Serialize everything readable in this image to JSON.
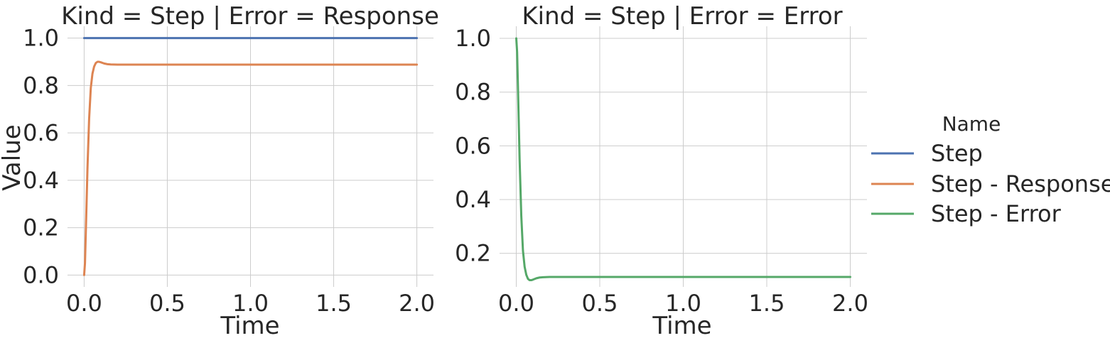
{
  "chart_data": {
    "type": "line",
    "xlabel": "Time",
    "ylabel": "Value",
    "legend": {
      "title": "Name",
      "placement": "right",
      "entries": [
        "Step",
        "Step - Response",
        "Step - Error"
      ]
    },
    "colors": {
      "Step": "#4c72b0",
      "Step - Response": "#dd8452",
      "Step - Error": "#55a868"
    },
    "panels": [
      {
        "title": "Kind = Step | Error = Response",
        "xlim": [
          -0.1,
          2.1
        ],
        "ylim": [
          -0.05,
          1.05
        ],
        "xticks": [
          "0.0",
          "0.5",
          "1.0",
          "1.5",
          "2.0"
        ],
        "xtick_values": [
          0,
          0.5,
          1.0,
          1.5,
          2.0
        ],
        "yticks": [
          "0.0",
          "0.2",
          "0.4",
          "0.6",
          "0.8",
          "1.0"
        ],
        "ytick_values": [
          0,
          0.2,
          0.4,
          0.6,
          0.8,
          1.0
        ],
        "grid": true,
        "series": [
          {
            "name": "Step",
            "x": [
              0,
              2.0
            ],
            "y": [
              1.0,
              1.0
            ]
          },
          {
            "name": "Step - Response",
            "x": [
              0,
              0.005,
              0.01,
              0.02,
              0.03,
              0.04,
              0.05,
              0.06,
              0.07,
              0.08,
              0.09,
              0.1,
              0.12,
              0.14,
              0.16,
              0.2,
              0.3,
              0.5,
              1.0,
              1.5,
              2.0
            ],
            "y": [
              0,
              0.05,
              0.18,
              0.45,
              0.66,
              0.79,
              0.85,
              0.88,
              0.895,
              0.9,
              0.9,
              0.898,
              0.893,
              0.89,
              0.889,
              0.888,
              0.888,
              0.888,
              0.888,
              0.888,
              0.888
            ]
          }
        ]
      },
      {
        "title": "Kind = Step | Error = Error",
        "xlim": [
          -0.1,
          2.1
        ],
        "ylim": [
          0.075,
          1.045
        ],
        "xticks": [
          "0.0",
          "0.5",
          "1.0",
          "1.5",
          "2.0"
        ],
        "xtick_values": [
          0,
          0.5,
          1.0,
          1.5,
          2.0
        ],
        "yticks": [
          "0.2",
          "0.4",
          "0.6",
          "0.8",
          "1.0"
        ],
        "ytick_values": [
          0.2,
          0.4,
          0.6,
          0.8,
          1.0
        ],
        "grid": true,
        "series": [
          {
            "name": "Step - Error",
            "x": [
              0,
              0.005,
              0.01,
              0.02,
              0.03,
              0.04,
              0.05,
              0.06,
              0.07,
              0.08,
              0.09,
              0.1,
              0.12,
              0.14,
              0.16,
              0.2,
              0.3,
              0.5,
              1.0,
              1.5,
              2.0
            ],
            "y": [
              1.0,
              0.95,
              0.82,
              0.55,
              0.34,
              0.21,
              0.15,
              0.12,
              0.105,
              0.1,
              0.1,
              0.102,
              0.107,
              0.11,
              0.111,
              0.112,
              0.112,
              0.112,
              0.112,
              0.112,
              0.112
            ]
          }
        ]
      }
    ]
  }
}
